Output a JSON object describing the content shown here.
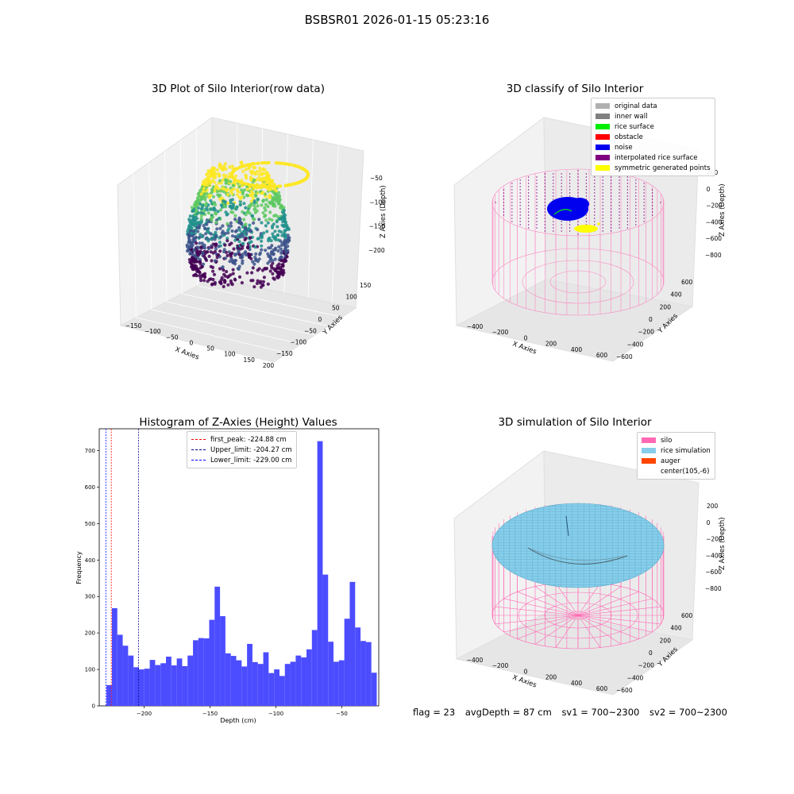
{
  "figure_title": "BSBSR01 2026-01-15 05:23:16",
  "footer": {
    "flag": "flag = 23",
    "avg_depth": "avgDepth = 87 cm",
    "sv1": "sv1 = 700~2300",
    "sv2": "sv2 = 700~2300"
  },
  "chart_data": [
    {
      "type": "scatter",
      "subtype": "3d",
      "title": "3D Plot of Silo Interior(row data)",
      "xlabel": "X Axies",
      "ylabel": "Y Axies",
      "zlabel": "Z Axies (Depth)",
      "x_ticks": [
        "−150",
        "−100",
        "−50",
        "0",
        "50",
        "100",
        "150",
        "200"
      ],
      "y_ticks": [
        "150",
        "100",
        "50",
        "0",
        "−50",
        "−100",
        "−150"
      ],
      "z_ticks": [
        "−50",
        "−100",
        "−150",
        "−200"
      ],
      "colormap": "viridis"
    },
    {
      "type": "scatter",
      "subtype": "3d",
      "title": "3D classify of Silo Interior",
      "xlabel": "X Axies",
      "ylabel": "Y Axies",
      "zlabel": "Z Axies (Depth)",
      "x_ticks": [
        "−400",
        "−200",
        "0",
        "200",
        "400",
        "600"
      ],
      "y_ticks": [
        "600",
        "400",
        "200",
        "0",
        "−200",
        "−400",
        "−600"
      ],
      "z_ticks": [
        "200",
        "0",
        "−200",
        "−400",
        "−600",
        "−800"
      ],
      "legend_position": "top-right",
      "legend": [
        {
          "label": "original data",
          "color": "#b0b0b0"
        },
        {
          "label": "inner wall",
          "color": "#808080"
        },
        {
          "label": "rice surface",
          "color": "#00ee00"
        },
        {
          "label": "obstacle",
          "color": "#ff0000"
        },
        {
          "label": "noise",
          "color": "#0000ee"
        },
        {
          "label": "interpolated rice surface",
          "color": "#800080"
        },
        {
          "label": "symmetric generated points",
          "color": "#ffff00"
        }
      ]
    },
    {
      "type": "bar",
      "subtype": "histogram",
      "title": "Histogram of Z-Axies (Height) Values",
      "xlabel": "Depth (cm)",
      "ylabel": "Frequency",
      "xlim": [
        -234,
        -22
      ],
      "ylim": [
        0,
        760
      ],
      "x_ticks": [
        -200,
        -150,
        -100,
        -50
      ],
      "y_ticks": [
        0,
        100,
        200,
        300,
        400,
        500,
        600,
        700
      ],
      "bar_color": "#4c4cff",
      "bin_start": -228.5,
      "bin_width": 4.1,
      "values": [
        57,
        268,
        195,
        165,
        138,
        106,
        100,
        102,
        126,
        112,
        117,
        135,
        111,
        130,
        109,
        138,
        180,
        186,
        185,
        236,
        327,
        246,
        144,
        137,
        125,
        108,
        170,
        120,
        115,
        147,
        90,
        100,
        82,
        115,
        121,
        138,
        133,
        155,
        208,
        726,
        360,
        176,
        121,
        125,
        239,
        340,
        215,
        178,
        175,
        91
      ],
      "vlines": [
        {
          "label": "first_peak: -224.88 cm",
          "x": -224.88,
          "color": "#ff0000"
        },
        {
          "label": "Upper_limit: -204.27 cm",
          "x": -204.27,
          "color": "#00008b"
        },
        {
          "label": "Lower_limit: -229.00 cm",
          "x": -229.0,
          "color": "#0000ff"
        }
      ],
      "legend_position": "top-center"
    },
    {
      "type": "scatter",
      "subtype": "3d-surface",
      "title": "3D simulation of Silo Interior",
      "xlabel": "X Axies",
      "ylabel": "Y Axies",
      "zlabel": "Z Axies (Depth)",
      "x_ticks": [
        "−400",
        "−200",
        "0",
        "200",
        "400",
        "600"
      ],
      "y_ticks": [
        "600",
        "400",
        "200",
        "0",
        "−200",
        "−400",
        "−600"
      ],
      "z_ticks": [
        "200",
        "0",
        "−200",
        "−400",
        "−600",
        "−800"
      ],
      "legend_position": "top-right",
      "legend": [
        {
          "label": "silo",
          "color": "#ff69b4"
        },
        {
          "label": "rice simulation",
          "color": "#87ceeb"
        },
        {
          "label": "auger",
          "color": "#ff4500"
        },
        {
          "label": "center(105,-6)",
          "color": "#ffffff"
        }
      ]
    }
  ]
}
